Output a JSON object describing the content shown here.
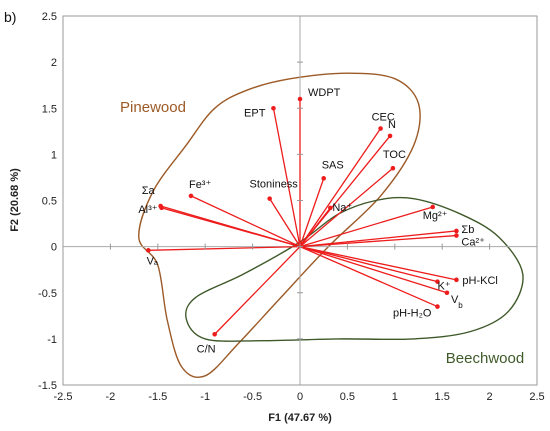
{
  "chart_data": {
    "type": "biplot",
    "panel_label": "b)",
    "xlabel": "F1 (47.67 %)",
    "ylabel": "F2 (20.68 %)",
    "xlim": [
      -2.5,
      2.5
    ],
    "ylim": [
      -1.5,
      2.5
    ],
    "xticks": [
      "-2.5",
      "-2",
      "-1.5",
      "-1",
      "-0.5",
      "0",
      "0.5",
      "1",
      "1.5",
      "2",
      "2.5"
    ],
    "yticks": [
      "-1.5",
      "-1",
      "-0.5",
      "0",
      "0.5",
      "1",
      "1.5",
      "2",
      "2.5"
    ],
    "grid": false,
    "vector_color": "#ee1c1c",
    "vectors": [
      {
        "label": "WDPT",
        "x": 0.0,
        "y": 1.6
      },
      {
        "label": "EPT",
        "x": -0.28,
        "y": 1.5
      },
      {
        "label": "CEC",
        "x": 0.85,
        "y": 1.28
      },
      {
        "label": "N",
        "x": 0.95,
        "y": 1.2
      },
      {
        "label": "TOC",
        "x": 0.98,
        "y": 0.85
      },
      {
        "label": "SAS",
        "x": 0.25,
        "y": 0.74
      },
      {
        "label": "Na⁺",
        "x": 0.32,
        "y": 0.42
      },
      {
        "label": "Stoniness",
        "x": -0.32,
        "y": 0.52
      },
      {
        "label": "Fe³⁺",
        "x": -1.15,
        "y": 0.55
      },
      {
        "label": "Σa",
        "x": -1.47,
        "y": 0.44
      },
      {
        "label": "Al³⁺",
        "x": -1.46,
        "y": 0.42
      },
      {
        "label": "Vₐ",
        "x": -1.6,
        "y": -0.04
      },
      {
        "label": "C/N",
        "x": -0.9,
        "y": -0.95
      },
      {
        "label": "Mg²⁺",
        "x": 1.4,
        "y": 0.43
      },
      {
        "label": "Σb",
        "x": 1.65,
        "y": 0.17
      },
      {
        "label": "Ca²⁺",
        "x": 1.65,
        "y": 0.12
      },
      {
        "label": "pH-KCl",
        "x": 1.65,
        "y": -0.36
      },
      {
        "label": "K⁺",
        "x": 1.45,
        "y": -0.38
      },
      {
        "label": "V_b",
        "x": 1.55,
        "y": -0.5
      },
      {
        "label": "pH-H₂O",
        "x": 1.45,
        "y": -0.65
      }
    ],
    "groups": [
      {
        "name": "Pinewood",
        "color": "#9c5a27",
        "outline": [
          [
            -1.5,
            -0.2
          ],
          [
            -1.7,
            0.1
          ],
          [
            -1.55,
            0.6
          ],
          [
            -1.2,
            1.1
          ],
          [
            -0.9,
            1.5
          ],
          [
            -0.55,
            1.7
          ],
          [
            -0.1,
            1.82
          ],
          [
            0.5,
            1.88
          ],
          [
            1.0,
            1.82
          ],
          [
            1.25,
            1.55
          ],
          [
            1.2,
            1.1
          ],
          [
            0.85,
            0.55
          ],
          [
            0.3,
            0.0
          ],
          [
            -0.2,
            -0.55
          ],
          [
            -0.65,
            -1.05
          ],
          [
            -1.0,
            -1.4
          ],
          [
            -1.25,
            -1.3
          ],
          [
            -1.4,
            -0.8
          ]
        ]
      },
      {
        "name": "Beechwood",
        "color": "#3f5a2a",
        "outline": [
          [
            -1.2,
            -0.78
          ],
          [
            -1.1,
            -0.55
          ],
          [
            -0.6,
            -0.3
          ],
          [
            0.0,
            0.05
          ],
          [
            0.4,
            0.35
          ],
          [
            0.8,
            0.5
          ],
          [
            1.2,
            0.52
          ],
          [
            1.7,
            0.35
          ],
          [
            2.1,
            0.1
          ],
          [
            2.35,
            -0.3
          ],
          [
            2.2,
            -0.7
          ],
          [
            1.8,
            -0.92
          ],
          [
            1.2,
            -1.0
          ],
          [
            0.4,
            -1.0
          ],
          [
            -0.4,
            -1.02
          ],
          [
            -1.0,
            -1.0
          ]
        ]
      }
    ]
  }
}
